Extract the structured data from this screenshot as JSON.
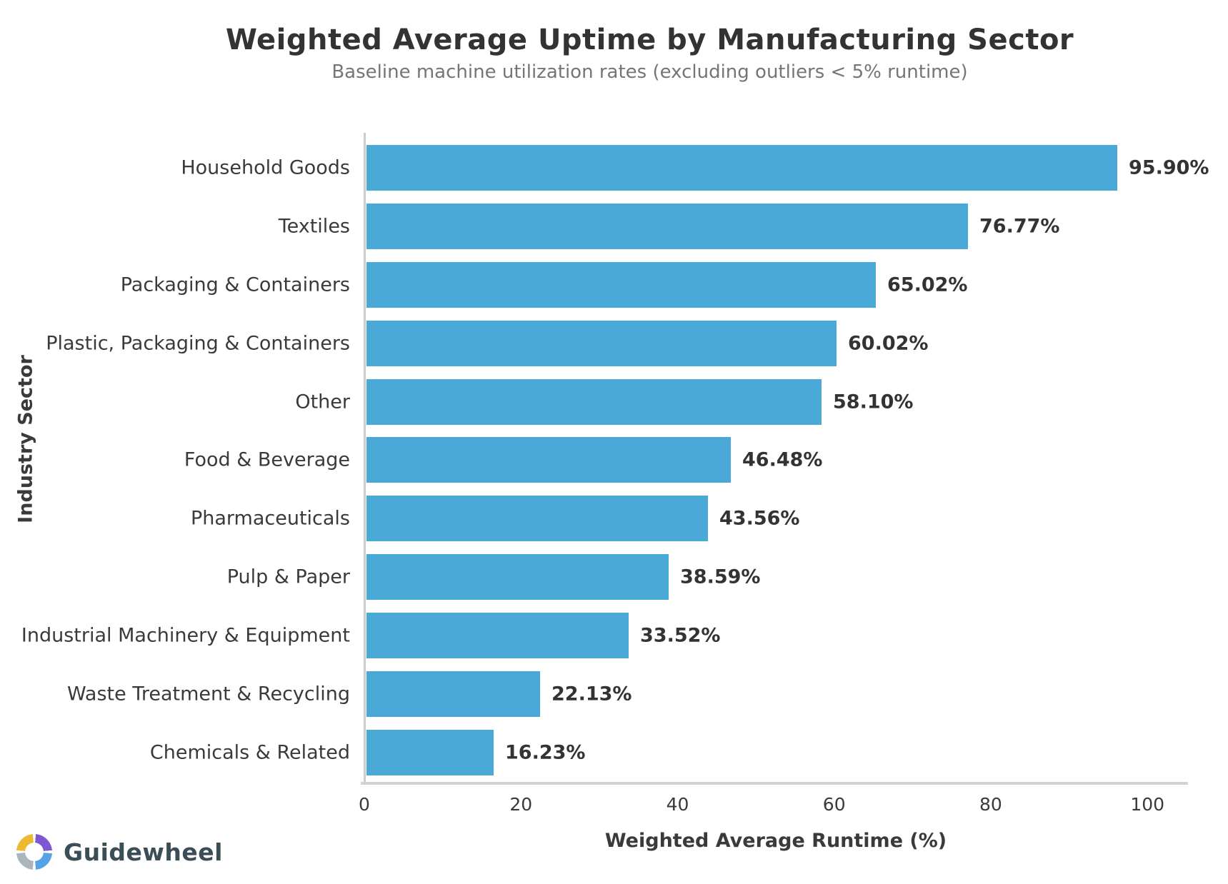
{
  "chart_data": {
    "type": "bar",
    "orientation": "horizontal",
    "title": "Weighted Average Uptime by Manufacturing Sector",
    "subtitle": "Baseline machine utilization rates (excluding outliers < 5% runtime)",
    "xlabel": "Weighted Average Runtime (%)",
    "ylabel": "Industry Sector",
    "categories": [
      "Household Goods",
      "Textiles",
      "Packaging & Containers",
      "Plastic, Packaging & Containers",
      "Other",
      "Food & Beverage",
      "Pharmaceuticals",
      "Pulp & Paper",
      "Industrial Machinery & Equipment",
      "Waste Treatment & Recycling",
      "Chemicals & Related"
    ],
    "values": [
      95.9,
      76.77,
      65.02,
      60.02,
      58.1,
      46.48,
      43.56,
      38.59,
      33.52,
      22.13,
      16.23
    ],
    "value_labels": [
      "95.90%",
      "76.77%",
      "65.02%",
      "60.02%",
      "58.10%",
      "46.48%",
      "43.56%",
      "38.59%",
      "33.52%",
      "22.13%",
      "16.23%"
    ],
    "x_ticks": [
      0,
      20,
      40,
      60,
      80,
      100
    ],
    "xlim": [
      0,
      105
    ],
    "grid": false,
    "legend": null,
    "bar_color": "#4aa9d7",
    "title_color": "#333333",
    "subtitle_color": "#757575",
    "label_color": "#3a3a3a",
    "spine_color": "#cccccc"
  },
  "branding": {
    "logo_text": "Guidewheel",
    "logo_icon": "guidewheel-ring-icon",
    "logo_text_color": "#3b4d57",
    "logo_segment_colors": {
      "top_right": "#7e57d4",
      "bottom_right": "#55a2e4",
      "bottom_left": "#abb6bc",
      "top_left": "#eeb82f"
    }
  }
}
